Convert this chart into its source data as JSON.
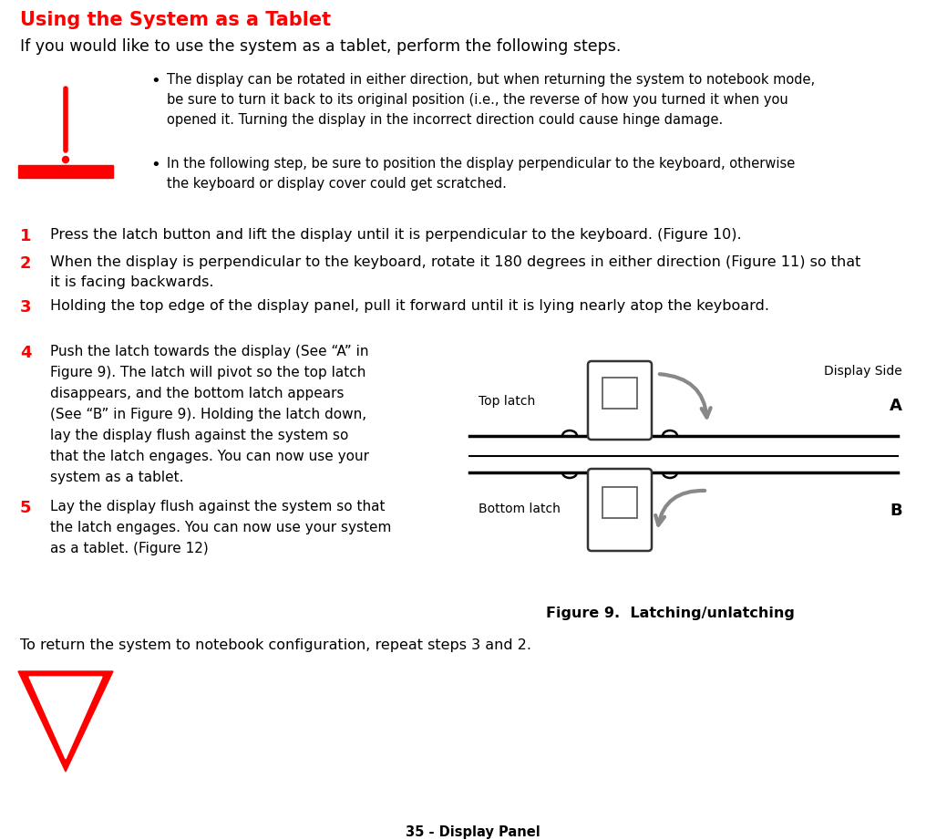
{
  "title": "Using the System as a Tablet",
  "title_color": "#FF0000",
  "bg_color": "#FFFFFF",
  "footer_text": "35 - Display Panel",
  "intro_text": "If you would like to use the system as a tablet, perform the following steps.",
  "warning_bullets": [
    "The display can be rotated in either direction, but when returning the system to notebook mode, be sure to turn it back to its original position (i.e., the reverse of how you turned it when you opened it. Turning the display in the incorrect direction could cause hinge damage.",
    "In the following step, be sure to position the display perpendicular to the keyboard, otherwise the keyboard or display cover could get scratched."
  ],
  "steps": [
    {
      "num": "1",
      "text": "Press the latch button and lift the display until it is perpendicular to the keyboard. (Figure 10)."
    },
    {
      "num": "2",
      "text": "When the display is perpendicular to the keyboard, rotate it 180 degrees in either direction (Figure 11) so that it is facing backwards."
    },
    {
      "num": "3",
      "text": "Holding the top edge of the display panel, pull it forward until it is lying nearly atop the keyboard."
    }
  ],
  "step4": {
    "num": "4",
    "text": "Push the latch towards the display (See “A” in Figure 9). The latch will pivot so the top latch disappears, and the bottom latch appears (See “B” in Figure 9). Holding the latch down, lay the display flush against the system so that the latch engages. You can now use your system as a tablet."
  },
  "step5": {
    "num": "5",
    "text": "Lay the display flush against the system so that the latch engages. You can now use your system as a tablet. (Figure 12)"
  },
  "return_text": "To return the system to notebook configuration, repeat steps 3 and 2.",
  "figure_caption": "Figure 9.  Latching/unlatching",
  "fig_labels": {
    "top_latch": "Top latch",
    "bottom_latch": "Bottom latch",
    "display_side": "Display Side",
    "A": "A",
    "B": "B"
  },
  "step_num_color": "#FF0000",
  "warn_triangle_color": "#FF0000"
}
